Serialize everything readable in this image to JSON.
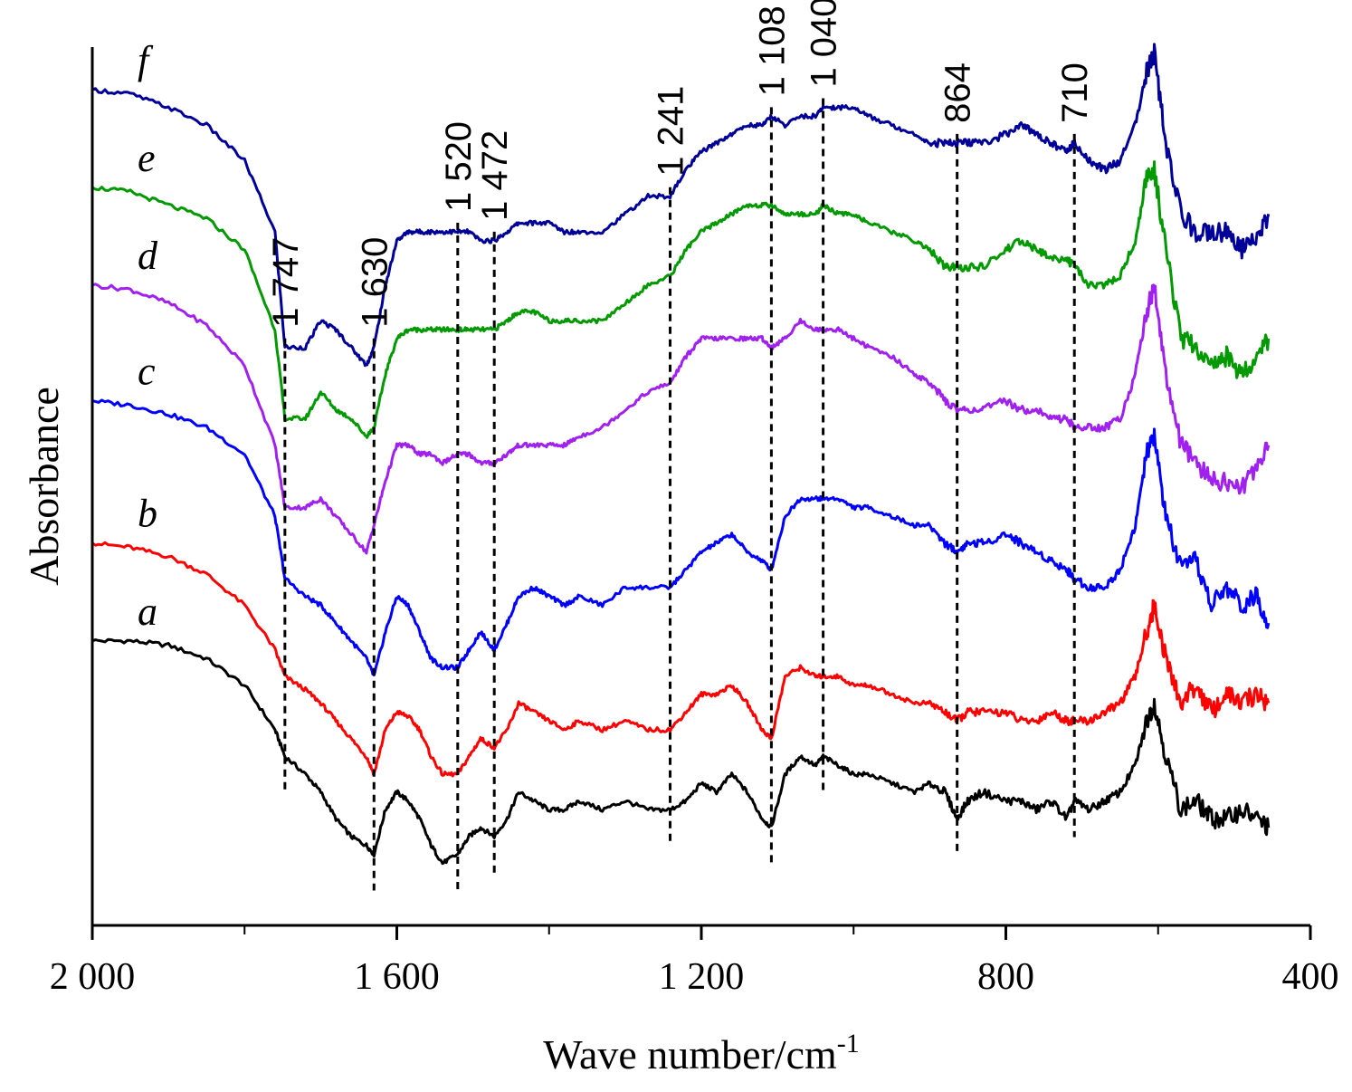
{
  "chart_data": {
    "type": "line",
    "xlabel": "Wave number/cm",
    "xlabel_sup": "-1",
    "ylabel": "Absorbance",
    "x_reversed": true,
    "xlim": [
      2000,
      400
    ],
    "ylim": [
      0,
      100
    ],
    "x_ticks": [
      2000,
      1600,
      1200,
      800,
      400
    ],
    "x_tick_labels": [
      "2 000",
      "1 600",
      "1 200",
      "800",
      "400"
    ],
    "y_ticks_shown": false,
    "grid": false,
    "legend": "none",
    "peak_markers": [
      {
        "x": 1747,
        "label": "1 747"
      },
      {
        "x": 1630,
        "label": "1 630"
      },
      {
        "x": 1520,
        "label": "1 520"
      },
      {
        "x": 1472,
        "label": "1 472"
      },
      {
        "x": 1241,
        "label": "1 241"
      },
      {
        "x": 1108,
        "label": "1 108"
      },
      {
        "x": 1040,
        "label": "1 040"
      },
      {
        "x": 864,
        "label": "864"
      },
      {
        "x": 710,
        "label": "710"
      }
    ],
    "series": [
      {
        "name": "a",
        "color": "#000000",
        "x": [
          2000,
          1950,
          1900,
          1850,
          1800,
          1760,
          1747,
          1720,
          1700,
          1680,
          1660,
          1640,
          1630,
          1615,
          1600,
          1585,
          1570,
          1555,
          1540,
          1520,
          1505,
          1490,
          1472,
          1455,
          1440,
          1420,
          1400,
          1380,
          1360,
          1330,
          1300,
          1270,
          1241,
          1220,
          1200,
          1180,
          1160,
          1140,
          1120,
          1108,
          1090,
          1070,
          1050,
          1040,
          1020,
          1000,
          980,
          950,
          920,
          900,
          880,
          864,
          850,
          830,
          800,
          780,
          760,
          740,
          720,
          710,
          690,
          670,
          650,
          630,
          615,
          605,
          590,
          570,
          550,
          530,
          510,
          490,
          470,
          455
        ],
        "y": [
          32,
          32,
          31.5,
          30,
          27,
          22,
          19,
          17,
          15,
          12,
          10,
          9,
          8,
          13,
          15,
          14,
          12,
          9,
          7,
          8,
          10,
          11,
          10,
          12,
          15,
          14,
          13,
          13,
          14,
          13,
          14,
          13,
          13,
          14,
          16,
          15,
          17,
          15,
          12,
          11,
          17,
          19,
          18,
          19,
          18,
          17,
          17,
          16,
          15,
          16,
          15,
          12,
          14,
          15,
          14,
          14,
          13,
          14,
          12,
          14,
          13,
          14,
          15,
          18,
          23,
          25,
          19,
          13,
          14,
          12,
          12,
          13,
          12,
          11
        ]
      },
      {
        "name": "b",
        "color": "#ff0000",
        "x": [
          2000,
          1950,
          1900,
          1850,
          1800,
          1760,
          1747,
          1720,
          1700,
          1680,
          1660,
          1640,
          1630,
          1615,
          1600,
          1585,
          1570,
          1555,
          1540,
          1520,
          1505,
          1490,
          1472,
          1455,
          1440,
          1420,
          1400,
          1380,
          1360,
          1330,
          1300,
          1270,
          1241,
          1220,
          1200,
          1180,
          1160,
          1140,
          1120,
          1108,
          1090,
          1070,
          1050,
          1040,
          1020,
          1000,
          980,
          950,
          920,
          900,
          880,
          864,
          850,
          830,
          800,
          780,
          760,
          740,
          720,
          710,
          690,
          670,
          650,
          630,
          615,
          605,
          590,
          570,
          550,
          530,
          510,
          490,
          470,
          455
        ],
        "y": [
          43,
          42.5,
          41.5,
          39.5,
          36,
          31,
          28,
          26.5,
          25,
          23,
          21,
          19,
          17,
          22,
          24,
          23.5,
          22,
          19,
          17,
          17,
          19,
          21,
          20,
          22,
          25,
          24,
          23,
          22,
          23,
          22,
          23,
          22,
          22,
          24,
          26,
          26,
          27,
          25,
          22,
          21,
          28,
          29,
          28,
          28,
          28,
          27,
          27,
          26,
          25,
          25,
          24,
          23,
          24,
          24,
          24,
          23,
          23,
          24,
          23,
          23,
          23,
          24,
          25,
          28,
          33,
          36,
          30,
          25,
          27,
          24,
          26,
          25,
          26,
          25
        ]
      },
      {
        "name": "c",
        "color": "#0000ff",
        "x": [
          2000,
          1950,
          1900,
          1850,
          1800,
          1760,
          1747,
          1720,
          1700,
          1680,
          1660,
          1640,
          1630,
          1615,
          1600,
          1585,
          1570,
          1555,
          1540,
          1520,
          1505,
          1490,
          1472,
          1455,
          1440,
          1420,
          1400,
          1380,
          1360,
          1330,
          1300,
          1270,
          1241,
          1220,
          1200,
          1180,
          1160,
          1140,
          1120,
          1108,
          1090,
          1070,
          1050,
          1040,
          1020,
          1000,
          980,
          950,
          920,
          900,
          880,
          864,
          850,
          830,
          800,
          780,
          760,
          740,
          720,
          710,
          690,
          670,
          650,
          630,
          615,
          605,
          590,
          570,
          550,
          530,
          510,
          490,
          470,
          455
        ],
        "y": [
          59,
          58.5,
          57.5,
          56,
          53,
          46,
          39,
          37,
          36,
          34,
          32,
          30,
          28,
          33,
          37,
          36,
          33,
          30,
          29,
          29,
          31,
          33,
          31,
          34,
          37,
          38,
          37,
          36,
          37,
          36,
          38,
          38,
          38,
          40,
          42,
          43,
          44,
          42,
          41,
          40,
          46,
          48,
          48,
          48,
          48,
          47,
          47,
          46,
          45,
          45,
          43,
          42,
          43,
          43,
          44,
          43,
          42,
          41,
          40,
          39,
          38,
          38,
          40,
          45,
          53,
          55,
          46,
          40,
          41,
          36,
          38,
          36,
          37,
          34
        ]
      },
      {
        "name": "d",
        "color": "#a020f0",
        "x": [
          2000,
          1950,
          1900,
          1850,
          1800,
          1760,
          1747,
          1720,
          1700,
          1680,
          1660,
          1640,
          1630,
          1615,
          1600,
          1585,
          1570,
          1555,
          1540,
          1520,
          1505,
          1490,
          1472,
          1455,
          1440,
          1420,
          1400,
          1380,
          1360,
          1330,
          1300,
          1270,
          1241,
          1220,
          1200,
          1180,
          1160,
          1140,
          1120,
          1108,
          1090,
          1070,
          1050,
          1040,
          1020,
          1000,
          980,
          950,
          920,
          900,
          880,
          864,
          850,
          830,
          800,
          780,
          760,
          740,
          720,
          710,
          690,
          670,
          650,
          630,
          615,
          605,
          590,
          570,
          550,
          530,
          510,
          490,
          470,
          455
        ],
        "y": [
          72,
          71.5,
          70,
          67.5,
          63,
          54,
          47,
          47,
          48,
          46,
          44,
          42,
          45,
          50,
          54,
          54,
          53,
          53,
          52,
          53,
          53,
          52,
          52,
          53,
          54,
          54,
          54,
          54,
          55,
          56,
          58,
          60,
          61,
          64,
          66,
          66,
          66,
          66,
          66,
          65,
          66,
          68,
          67,
          67,
          67,
          66,
          65,
          64,
          62,
          61,
          59,
          58,
          58,
          58,
          59,
          58,
          58,
          57,
          57,
          56,
          56,
          56,
          57,
          62,
          69,
          72,
          62,
          54,
          52,
          50,
          50,
          49,
          52,
          54
        ]
      },
      {
        "name": "e",
        "color": "#009900",
        "x": [
          2000,
          1950,
          1900,
          1850,
          1800,
          1760,
          1747,
          1720,
          1700,
          1680,
          1660,
          1640,
          1630,
          1615,
          1600,
          1585,
          1570,
          1555,
          1540,
          1520,
          1505,
          1490,
          1472,
          1455,
          1440,
          1420,
          1400,
          1380,
          1360,
          1330,
          1300,
          1270,
          1241,
          1220,
          1200,
          1180,
          1160,
          1140,
          1120,
          1108,
          1090,
          1070,
          1050,
          1040,
          1020,
          1000,
          980,
          950,
          920,
          900,
          880,
          864,
          850,
          830,
          800,
          780,
          760,
          740,
          720,
          710,
          690,
          670,
          650,
          630,
          615,
          605,
          590,
          570,
          550,
          530,
          510,
          490,
          470,
          455
        ],
        "y": [
          83,
          82.5,
          81,
          79.5,
          76,
          67,
          57,
          57,
          60,
          58,
          57,
          55,
          56,
          62,
          66,
          67,
          67,
          67,
          67,
          67,
          67,
          67,
          67,
          68,
          69,
          69,
          68,
          68,
          68,
          68,
          70,
          72,
          73,
          76,
          78,
          79,
          80,
          81,
          81,
          81,
          80,
          80,
          80,
          81,
          80,
          80,
          79,
          78,
          77,
          76,
          74,
          74,
          74,
          74,
          76,
          77,
          76,
          75,
          75,
          74,
          72,
          72,
          73,
          77,
          84,
          85,
          76,
          66,
          65,
          63,
          64,
          62,
          64,
          66
        ]
      },
      {
        "name": "f",
        "color": "#000099",
        "x": [
          2000,
          1950,
          1900,
          1850,
          1800,
          1760,
          1747,
          1720,
          1700,
          1680,
          1660,
          1640,
          1630,
          1615,
          1600,
          1585,
          1570,
          1555,
          1540,
          1520,
          1505,
          1490,
          1472,
          1455,
          1440,
          1420,
          1400,
          1380,
          1360,
          1330,
          1300,
          1270,
          1241,
          1220,
          1200,
          1180,
          1160,
          1140,
          1120,
          1108,
          1090,
          1070,
          1050,
          1040,
          1020,
          1000,
          980,
          950,
          920,
          900,
          880,
          864,
          850,
          830,
          800,
          780,
          760,
          740,
          720,
          710,
          690,
          670,
          650,
          630,
          615,
          605,
          590,
          570,
          550,
          530,
          510,
          490,
          470,
          455
        ],
        "y": [
          94,
          93.5,
          92,
          90,
          86,
          78,
          65,
          65,
          68,
          67,
          65,
          63,
          65,
          72,
          77,
          78,
          78,
          78,
          78,
          78,
          78,
          77,
          77,
          78,
          79,
          79,
          79,
          78,
          78,
          78,
          80,
          82,
          82,
          85,
          87,
          88,
          89,
          90,
          90,
          91,
          90,
          91,
          91,
          92,
          92,
          92,
          91,
          90,
          89,
          88,
          88,
          88,
          88,
          88,
          89,
          90,
          89,
          88,
          87,
          88,
          86,
          85,
          86,
          90,
          96,
          98,
          88,
          80,
          78,
          78,
          78,
          76,
          77,
          80
        ]
      }
    ]
  }
}
